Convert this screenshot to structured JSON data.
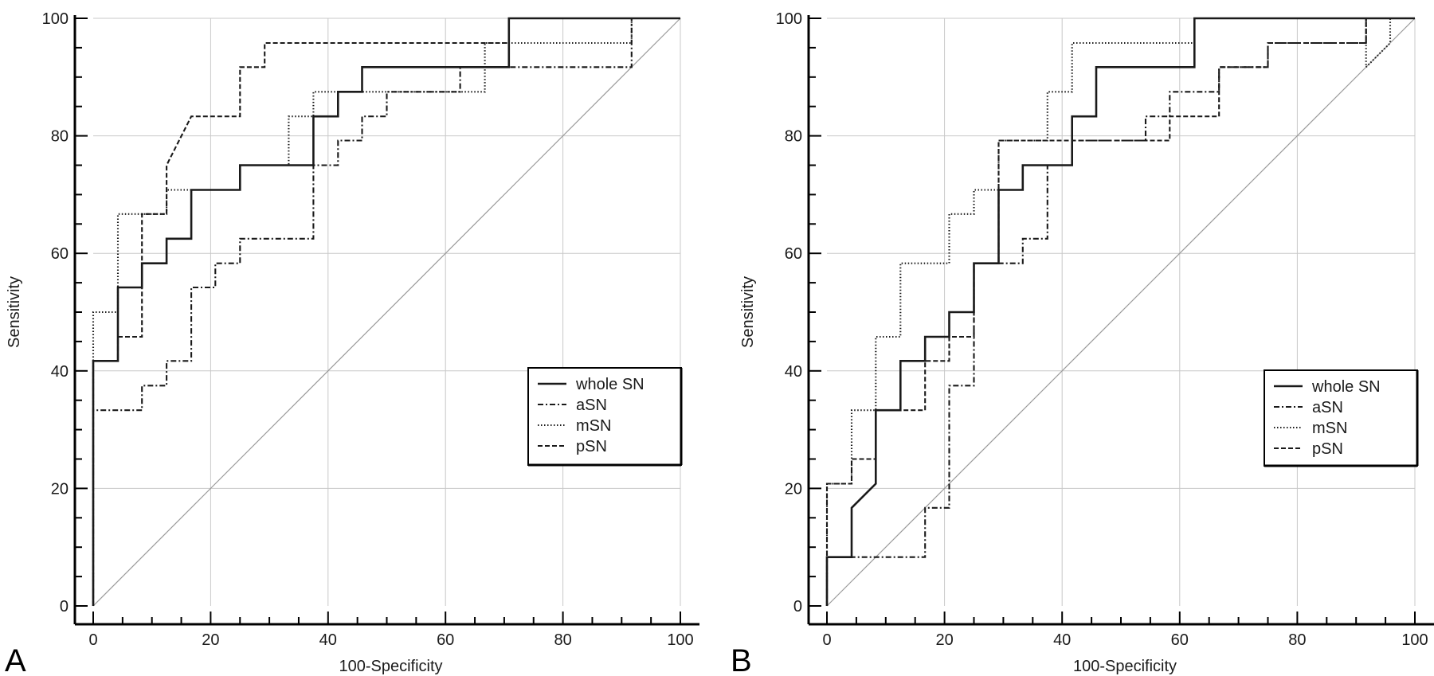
{
  "chart_data": [
    {
      "type": "line",
      "panel_label": "A",
      "xlabel": "100-Specificity",
      "ylabel": "Sensitivity",
      "xlim": [
        0,
        100
      ],
      "ylim": [
        0,
        100
      ],
      "xticks": [
        "0",
        "20",
        "40",
        "60",
        "80",
        "100"
      ],
      "yticks": [
        "0",
        "20",
        "40",
        "60",
        "80",
        "100"
      ],
      "grid": true,
      "legend_position": "lower-right",
      "reference_line": "diagonal",
      "series": [
        {
          "name": "whole SN",
          "style": "solid",
          "points": [
            [
              0,
              0
            ],
            [
              0,
              41.7
            ],
            [
              4.2,
              41.7
            ],
            [
              4.2,
              54.2
            ],
            [
              8.3,
              54.2
            ],
            [
              8.3,
              58.3
            ],
            [
              12.5,
              58.3
            ],
            [
              12.5,
              62.5
            ],
            [
              16.7,
              62.5
            ],
            [
              16.7,
              70.8
            ],
            [
              25,
              70.8
            ],
            [
              25,
              75
            ],
            [
              37.5,
              75
            ],
            [
              37.5,
              83.3
            ],
            [
              41.7,
              83.3
            ],
            [
              41.7,
              87.5
            ],
            [
              45.8,
              87.5
            ],
            [
              45.8,
              91.7
            ],
            [
              70.8,
              91.7
            ],
            [
              70.8,
              100
            ],
            [
              100,
              100
            ]
          ]
        },
        {
          "name": "aSN",
          "style": "dashdot",
          "points": [
            [
              0,
              0
            ],
            [
              0,
              33.3
            ],
            [
              8.3,
              33.3
            ],
            [
              8.3,
              37.5
            ],
            [
              12.5,
              37.5
            ],
            [
              12.5,
              41.7
            ],
            [
              16.7,
              41.7
            ],
            [
              16.7,
              54.2
            ],
            [
              20.8,
              54.2
            ],
            [
              20.8,
              58.3
            ],
            [
              25,
              58.3
            ],
            [
              25,
              62.5
            ],
            [
              37.5,
              62.5
            ],
            [
              37.5,
              75
            ],
            [
              41.7,
              75
            ],
            [
              41.7,
              79.2
            ],
            [
              45.8,
              79.2
            ],
            [
              45.8,
              83.3
            ],
            [
              50,
              83.3
            ],
            [
              50,
              87.5
            ],
            [
              62.5,
              87.5
            ],
            [
              62.5,
              91.7
            ],
            [
              91.7,
              91.7
            ],
            [
              91.7,
              100
            ],
            [
              100,
              100
            ]
          ]
        },
        {
          "name": "mSN",
          "style": "dotted",
          "points": [
            [
              0,
              0
            ],
            [
              0,
              50
            ],
            [
              4.2,
              50
            ],
            [
              4.2,
              66.7
            ],
            [
              12.5,
              66.7
            ],
            [
              12.5,
              70.8
            ],
            [
              25,
              70.8
            ],
            [
              25,
              75
            ],
            [
              33.3,
              75
            ],
            [
              33.3,
              83.3
            ],
            [
              37.5,
              83.3
            ],
            [
              37.5,
              87.5
            ],
            [
              66.7,
              87.5
            ],
            [
              66.7,
              95.8
            ],
            [
              91.7,
              95.8
            ],
            [
              91.7,
              100
            ],
            [
              100,
              100
            ]
          ]
        },
        {
          "name": "pSN",
          "style": "dashed",
          "points": [
            [
              0,
              0
            ],
            [
              0,
              41.7
            ],
            [
              4.2,
              41.7
            ],
            [
              4.2,
              45.8
            ],
            [
              8.3,
              45.8
            ],
            [
              8.3,
              66.7
            ],
            [
              12.5,
              66.7
            ],
            [
              12.5,
              75
            ],
            [
              16.7,
              83.3
            ],
            [
              25,
              83.3
            ],
            [
              25,
              91.7
            ],
            [
              29.2,
              91.7
            ],
            [
              29.2,
              95.8
            ],
            [
              70.8,
              95.8
            ],
            [
              70.8,
              100
            ],
            [
              100,
              100
            ]
          ]
        }
      ]
    },
    {
      "type": "line",
      "panel_label": "B",
      "xlabel": "100-Specificity",
      "ylabel": "Sensitivity",
      "xlim": [
        0,
        100
      ],
      "ylim": [
        0,
        100
      ],
      "xticks": [
        "0",
        "20",
        "40",
        "60",
        "80",
        "100"
      ],
      "yticks": [
        "0",
        "20",
        "40",
        "60",
        "80",
        "100"
      ],
      "grid": true,
      "legend_position": "lower-right",
      "reference_line": "diagonal",
      "series": [
        {
          "name": "whole SN",
          "style": "solid",
          "points": [
            [
              0,
              0
            ],
            [
              0,
              8.3
            ],
            [
              4.2,
              8.3
            ],
            [
              4.2,
              16.7
            ],
            [
              8.3,
              20.8
            ],
            [
              8.3,
              33.3
            ],
            [
              12.5,
              33.3
            ],
            [
              12.5,
              41.7
            ],
            [
              16.7,
              41.7
            ],
            [
              16.7,
              45.8
            ],
            [
              20.8,
              45.8
            ],
            [
              20.8,
              50
            ],
            [
              25,
              50
            ],
            [
              25,
              58.3
            ],
            [
              29.2,
              58.3
            ],
            [
              29.2,
              70.8
            ],
            [
              33.3,
              70.8
            ],
            [
              33.3,
              75
            ],
            [
              41.7,
              75
            ],
            [
              41.7,
              83.3
            ],
            [
              45.8,
              83.3
            ],
            [
              45.8,
              91.7
            ],
            [
              62.5,
              91.7
            ],
            [
              62.5,
              100
            ],
            [
              100,
              100
            ]
          ]
        },
        {
          "name": "aSN",
          "style": "dashdot",
          "points": [
            [
              0,
              0
            ],
            [
              0,
              8.3
            ],
            [
              16.7,
              8.3
            ],
            [
              16.7,
              16.7
            ],
            [
              20.8,
              16.7
            ],
            [
              20.8,
              37.5
            ],
            [
              25,
              37.5
            ],
            [
              25,
              58.3
            ],
            [
              33.3,
              58.3
            ],
            [
              33.3,
              62.5
            ],
            [
              37.5,
              62.5
            ],
            [
              37.5,
              75
            ],
            [
              41.7,
              75
            ],
            [
              41.7,
              79.2
            ],
            [
              54.2,
              79.2
            ],
            [
              54.2,
              83.3
            ],
            [
              58.3,
              83.3
            ],
            [
              58.3,
              87.5
            ],
            [
              66.7,
              87.5
            ],
            [
              66.7,
              91.7
            ],
            [
              75,
              91.7
            ],
            [
              75,
              95.8
            ],
            [
              91.7,
              95.8
            ],
            [
              91.7,
              100
            ],
            [
              100,
              100
            ]
          ]
        },
        {
          "name": "mSN",
          "style": "dotted",
          "points": [
            [
              0,
              0
            ],
            [
              0,
              20.8
            ],
            [
              4.2,
              20.8
            ],
            [
              4.2,
              33.3
            ],
            [
              8.3,
              33.3
            ],
            [
              8.3,
              45.8
            ],
            [
              12.5,
              45.8
            ],
            [
              12.5,
              58.3
            ],
            [
              20.8,
              58.3
            ],
            [
              20.8,
              66.7
            ],
            [
              25,
              66.7
            ],
            [
              25,
              70.8
            ],
            [
              29.2,
              70.8
            ],
            [
              29.2,
              79.2
            ],
            [
              37.5,
              79.2
            ],
            [
              37.5,
              87.5
            ],
            [
              41.7,
              87.5
            ],
            [
              41.7,
              95.8
            ],
            [
              62.5,
              95.8
            ],
            [
              62.5,
              100
            ],
            [
              91.7,
              100
            ],
            [
              91.7,
              91.7
            ],
            [
              95.8,
              95.8
            ],
            [
              95.8,
              100
            ],
            [
              100,
              100
            ]
          ]
        },
        {
          "name": "pSN",
          "style": "dashed",
          "points": [
            [
              0,
              0
            ],
            [
              0,
              20.8
            ],
            [
              4.2,
              20.8
            ],
            [
              4.2,
              25
            ],
            [
              8.3,
              25
            ],
            [
              8.3,
              33.3
            ],
            [
              16.7,
              33.3
            ],
            [
              16.7,
              41.7
            ],
            [
              20.8,
              41.7
            ],
            [
              20.8,
              45.8
            ],
            [
              25,
              45.8
            ],
            [
              25,
              58.3
            ],
            [
              29.2,
              58.3
            ],
            [
              29.2,
              79.2
            ],
            [
              58.3,
              79.2
            ],
            [
              58.3,
              83.3
            ],
            [
              66.7,
              83.3
            ],
            [
              66.7,
              91.7
            ],
            [
              75,
              91.7
            ],
            [
              75,
              95.8
            ],
            [
              91.7,
              95.8
            ],
            [
              91.7,
              100
            ],
            [
              100,
              100
            ]
          ]
        }
      ]
    }
  ]
}
